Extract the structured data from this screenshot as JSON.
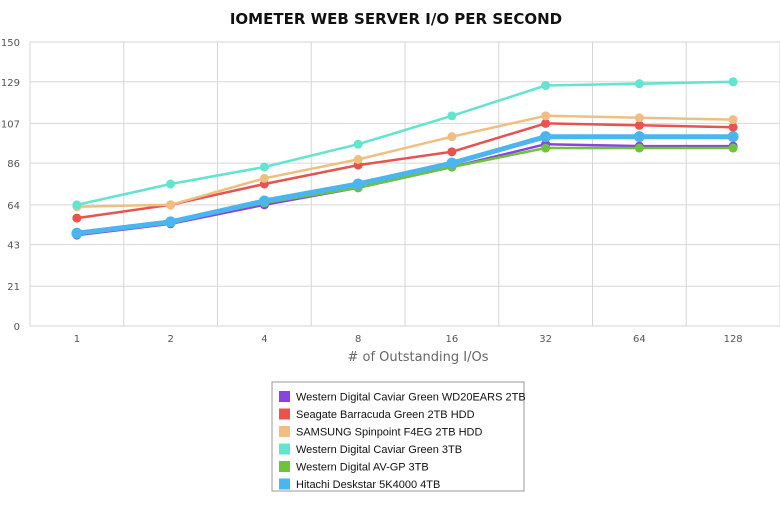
{
  "chart_data": {
    "type": "line",
    "title": "IOMETER WEB SERVER I/O PER SECOND",
    "xlabel": "# of Outstanding I/Os",
    "ylabel": "",
    "categories": [
      "1",
      "2",
      "4",
      "8",
      "16",
      "32",
      "64",
      "128"
    ],
    "y_ticks": [
      "0",
      "21",
      "43",
      "64",
      "86",
      "107",
      "129",
      "150"
    ],
    "ylim": [
      0,
      150
    ],
    "grid": true,
    "legend_position": "bottom-center",
    "series": [
      {
        "name": "Western Digital Caviar Green WD20EARS 2TB",
        "color": "#8a43e0",
        "values": [
          48,
          54,
          64,
          73,
          84,
          96,
          95,
          95
        ]
      },
      {
        "name": "Seagate Barracuda Green 2TB HDD",
        "color": "#e8524f",
        "values": [
          57,
          64,
          75,
          85,
          92,
          107,
          106,
          105
        ]
      },
      {
        "name": "SAMSUNG Spinpoint F4EG 2TB HDD",
        "color": "#f0bf80",
        "values": [
          63,
          64,
          78,
          88,
          100,
          111,
          110,
          109
        ]
      },
      {
        "name": "Western Digital Caviar Green 3TB",
        "color": "#62e4cf",
        "values": [
          64,
          75,
          84,
          96,
          111,
          127,
          128,
          129
        ]
      },
      {
        "name": "Western Digital AV-GP 3TB",
        "color": "#6cc33c",
        "values": [
          49,
          55,
          65,
          73,
          84,
          94,
          94,
          94
        ]
      },
      {
        "name": "Hitachi Deskstar 5K4000 4TB",
        "color": "#4ab5ee",
        "values": [
          49,
          55,
          66,
          75,
          86,
          100,
          100,
          100
        ]
      }
    ]
  }
}
